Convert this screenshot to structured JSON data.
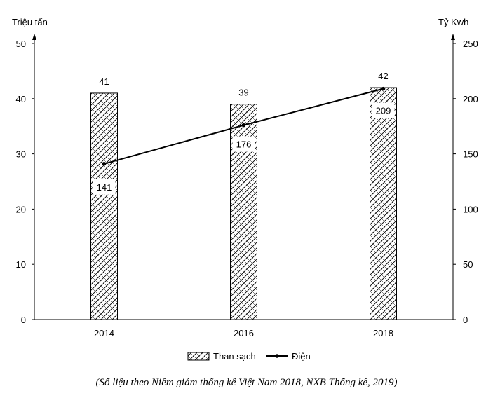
{
  "chart_data": {
    "type": "bar",
    "categories": [
      "2014",
      "2016",
      "2018"
    ],
    "y_left": {
      "label": "Triệu tấn",
      "lim": [
        0,
        50
      ],
      "ticks": [
        "0",
        "10",
        "20",
        "30",
        "40",
        "50"
      ]
    },
    "y_right": {
      "label": "Tỷ Kwh",
      "lim": [
        0,
        250
      ],
      "ticks": [
        "0",
        "50",
        "100",
        "150",
        "200",
        "250"
      ]
    },
    "series": [
      {
        "name": "Than sạch",
        "kind": "bar",
        "axis": "left",
        "values": [
          41,
          39,
          42
        ],
        "labels": [
          "41",
          "39",
          "42"
        ]
      },
      {
        "name": "Điện",
        "kind": "line",
        "axis": "right",
        "values": [
          141,
          176,
          209
        ],
        "labels": [
          "141",
          "176",
          "209"
        ]
      }
    ],
    "legend_position": "bottom",
    "grid": false,
    "colors": {
      "bar_fill": "#ffffff",
      "bar_hatch": "#000000",
      "line": "#000000"
    }
  },
  "caption": "(Số liệu theo Niêm giám thống kê Việt Nam 2018, NXB Thống kê, 2019)"
}
